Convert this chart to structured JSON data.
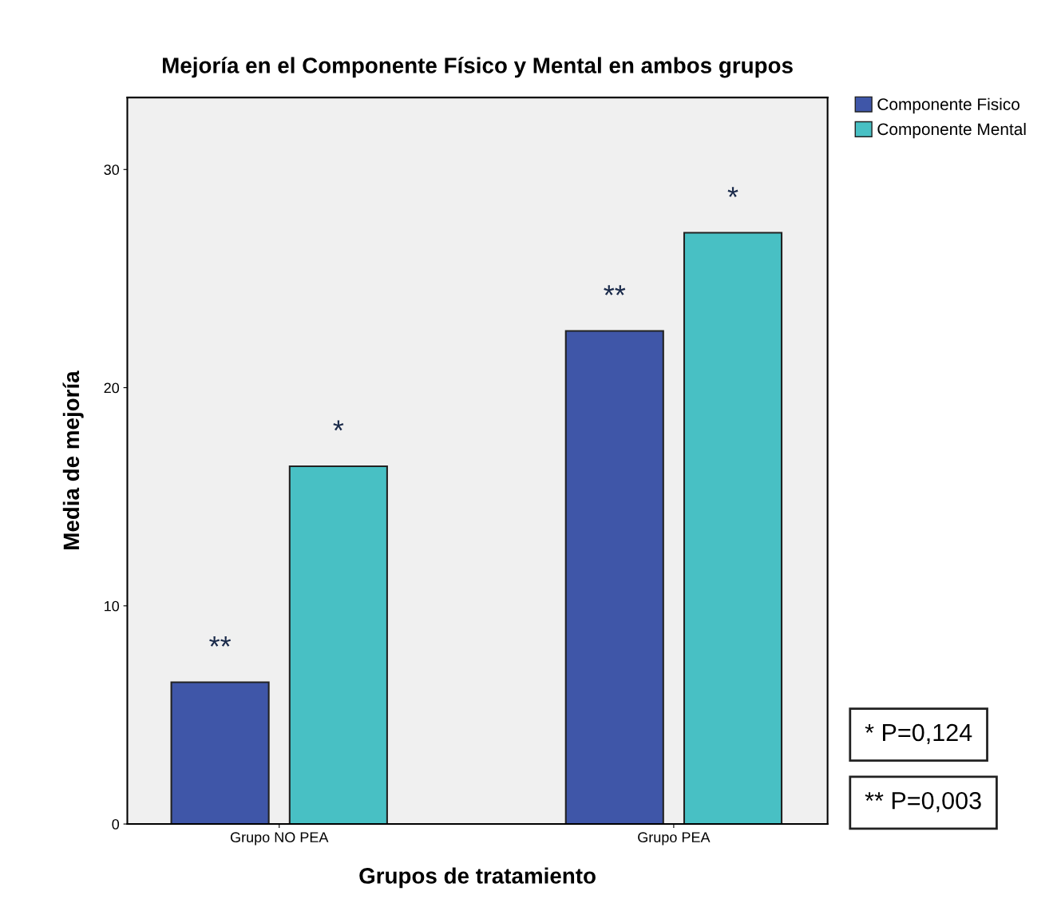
{
  "chart_data": {
    "type": "bar",
    "title": "Mejoría en el Componente Físico y Mental en ambos grupos",
    "xlabel": "Grupos de tratamiento",
    "ylabel": "Media de mejoría",
    "categories": [
      "Grupo NO PEA",
      "Grupo PEA"
    ],
    "series": [
      {
        "name": "Componente Fisico",
        "color": "#3f56a8",
        "values": [
          6.5,
          22.6
        ],
        "value_labels": [
          "**",
          "**"
        ]
      },
      {
        "name": "Componente Mental",
        "color": "#48c0c4",
        "values": [
          16.4,
          27.1
        ],
        "value_labels": [
          "*",
          "*"
        ]
      }
    ],
    "ylim": [
      0,
      33.3
    ],
    "yticks": [
      0,
      10,
      20,
      30
    ],
    "grid": false,
    "legend": "top right",
    "annotations": [
      "* P=0,124",
      "** P=0,003"
    ]
  }
}
